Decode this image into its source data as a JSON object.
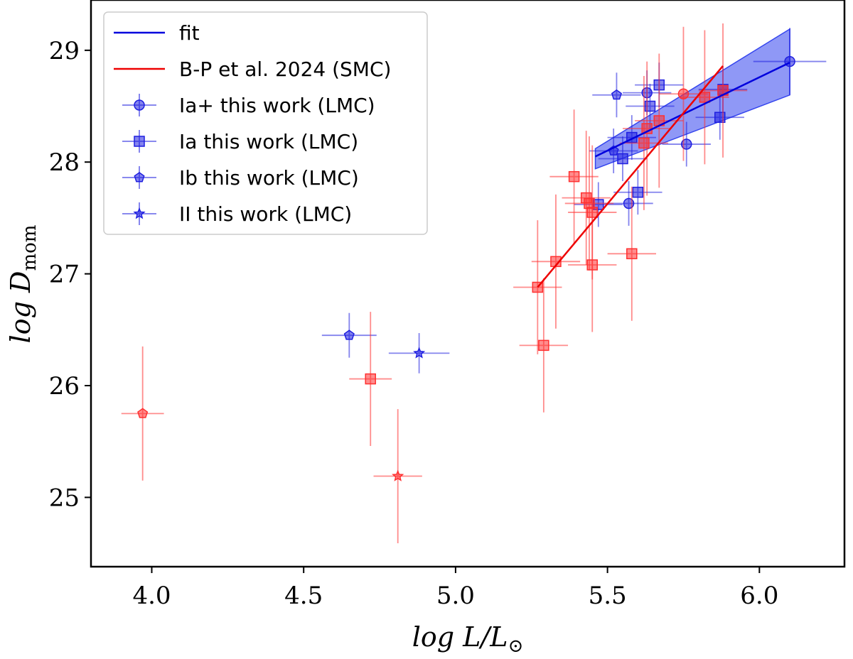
{
  "chart_data": {
    "type": "scatter",
    "xlabel_main": "log L/L",
    "xlabel_sub": "⊙",
    "ylabel_main": "log D",
    "ylabel_sub": "mom",
    "xlim": [
      3.8,
      6.28
    ],
    "ylim": [
      24.38,
      29.45
    ],
    "x_ticks": [
      4.0,
      4.5,
      5.0,
      5.5,
      6.0
    ],
    "x_tick_labels": [
      "4.0",
      "4.5",
      "5.0",
      "5.5",
      "6.0"
    ],
    "y_ticks": [
      25,
      26,
      27,
      28,
      29
    ],
    "y_tick_labels": [
      "25",
      "26",
      "27",
      "28",
      "29"
    ],
    "grid": false,
    "legend_position": "top-left",
    "colors": {
      "lmc": "#1f1fe0",
      "smc": "#ff3030",
      "fit": "#0000dd",
      "bp": "#ee0000",
      "band": "#3344ee"
    },
    "legend": [
      {
        "label": "fit",
        "kind": "line",
        "color": "#0000dd"
      },
      {
        "label": "B-P et al. 2024 (SMC)",
        "kind": "line",
        "color": "#ee0000"
      },
      {
        "label": "Ia+ this work (LMC)",
        "kind": "point",
        "marker": "circle",
        "color": "#1f1fe0"
      },
      {
        "label": "Ia this work (LMC)",
        "kind": "point",
        "marker": "square",
        "color": "#1f1fe0"
      },
      {
        "label": "Ib this work (LMC)",
        "kind": "point",
        "marker": "pentagon",
        "color": "#1f1fe0"
      },
      {
        "label": "II this work (LMC)",
        "kind": "point",
        "marker": "star",
        "color": "#1f1fe0"
      }
    ],
    "fit_line": {
      "x": [
        5.46,
        6.1
      ],
      "y": [
        28.05,
        28.89
      ]
    },
    "fit_band": {
      "x": [
        5.46,
        6.1
      ],
      "upper": [
        28.12,
        29.19
      ],
      "lower": [
        27.94,
        28.6
      ]
    },
    "bp_line": {
      "x": [
        5.27,
        5.88
      ],
      "y": [
        26.88,
        28.86
      ]
    },
    "series": [
      {
        "group": "this work (LMC)",
        "points": [
          {
            "x": 6.1,
            "y": 28.9,
            "xerr": 0.12,
            "yerr": 0.3,
            "marker": "circle"
          },
          {
            "x": 5.63,
            "y": 28.62,
            "xerr": 0.08,
            "yerr": 0.2,
            "marker": "circle"
          },
          {
            "x": 5.76,
            "y": 28.16,
            "xerr": 0.08,
            "yerr": 0.2,
            "marker": "circle"
          },
          {
            "x": 5.57,
            "y": 27.63,
            "xerr": 0.08,
            "yerr": 0.2,
            "marker": "circle"
          },
          {
            "x": 5.67,
            "y": 28.69,
            "xerr": 0.08,
            "yerr": 0.2,
            "marker": "square"
          },
          {
            "x": 5.64,
            "y": 28.5,
            "xerr": 0.08,
            "yerr": 0.2,
            "marker": "square"
          },
          {
            "x": 5.87,
            "y": 28.4,
            "xerr": 0.08,
            "yerr": 0.2,
            "marker": "square"
          },
          {
            "x": 5.88,
            "y": 28.65,
            "xerr": 0.08,
            "yerr": 0.2,
            "marker": "square"
          },
          {
            "x": 5.58,
            "y": 28.22,
            "xerr": 0.08,
            "yerr": 0.2,
            "marker": "square"
          },
          {
            "x": 5.55,
            "y": 28.03,
            "xerr": 0.08,
            "yerr": 0.2,
            "marker": "square"
          },
          {
            "x": 5.6,
            "y": 27.73,
            "xerr": 0.08,
            "yerr": 0.2,
            "marker": "square"
          },
          {
            "x": 5.47,
            "y": 27.62,
            "xerr": 0.08,
            "yerr": 0.2,
            "marker": "square"
          },
          {
            "x": 5.53,
            "y": 28.6,
            "xerr": 0.08,
            "yerr": 0.2,
            "marker": "pentagon"
          },
          {
            "x": 5.52,
            "y": 28.1,
            "xerr": 0.08,
            "yerr": 0.2,
            "marker": "pentagon"
          },
          {
            "x": 4.65,
            "y": 26.45,
            "xerr": 0.09,
            "yerr": 0.2,
            "marker": "pentagon"
          },
          {
            "x": 4.88,
            "y": 26.29,
            "xerr": 0.1,
            "yerr": 0.18,
            "marker": "star"
          }
        ]
      },
      {
        "group": "B-P et al. 2024 (SMC)",
        "points": [
          {
            "x": 5.75,
            "y": 28.61,
            "xerr": 0.08,
            "yerr": 0.6,
            "marker": "circle"
          },
          {
            "x": 5.82,
            "y": 28.58,
            "xerr": 0.08,
            "yerr": 0.6,
            "marker": "square"
          },
          {
            "x": 5.88,
            "y": 28.64,
            "xerr": 0.08,
            "yerr": 0.6,
            "marker": "square"
          },
          {
            "x": 5.67,
            "y": 28.37,
            "xerr": 0.08,
            "yerr": 0.6,
            "marker": "square"
          },
          {
            "x": 5.63,
            "y": 28.3,
            "xerr": 0.08,
            "yerr": 0.6,
            "marker": "square"
          },
          {
            "x": 5.62,
            "y": 28.17,
            "xerr": 0.08,
            "yerr": 0.6,
            "marker": "square"
          },
          {
            "x": 5.39,
            "y": 27.87,
            "xerr": 0.08,
            "yerr": 0.6,
            "marker": "square"
          },
          {
            "x": 5.43,
            "y": 27.68,
            "xerr": 0.08,
            "yerr": 0.6,
            "marker": "square"
          },
          {
            "x": 5.44,
            "y": 27.63,
            "xerr": 0.08,
            "yerr": 0.6,
            "marker": "square"
          },
          {
            "x": 5.45,
            "y": 27.55,
            "xerr": 0.08,
            "yerr": 0.6,
            "marker": "square"
          },
          {
            "x": 5.33,
            "y": 27.11,
            "xerr": 0.08,
            "yerr": 0.6,
            "marker": "square"
          },
          {
            "x": 5.45,
            "y": 27.08,
            "xerr": 0.08,
            "yerr": 0.6,
            "marker": "square"
          },
          {
            "x": 5.58,
            "y": 27.18,
            "xerr": 0.08,
            "yerr": 0.6,
            "marker": "square"
          },
          {
            "x": 5.27,
            "y": 26.88,
            "xerr": 0.08,
            "yerr": 0.6,
            "marker": "square"
          },
          {
            "x": 5.29,
            "y": 26.36,
            "xerr": 0.08,
            "yerr": 0.6,
            "marker": "square"
          },
          {
            "x": 4.72,
            "y": 26.06,
            "xerr": 0.07,
            "yerr": 0.6,
            "marker": "square"
          },
          {
            "x": 3.97,
            "y": 25.75,
            "xerr": 0.07,
            "yerr": 0.6,
            "marker": "pentagon"
          },
          {
            "x": 4.81,
            "y": 25.19,
            "xerr": 0.08,
            "yerr": 0.6,
            "marker": "star"
          }
        ]
      }
    ]
  }
}
